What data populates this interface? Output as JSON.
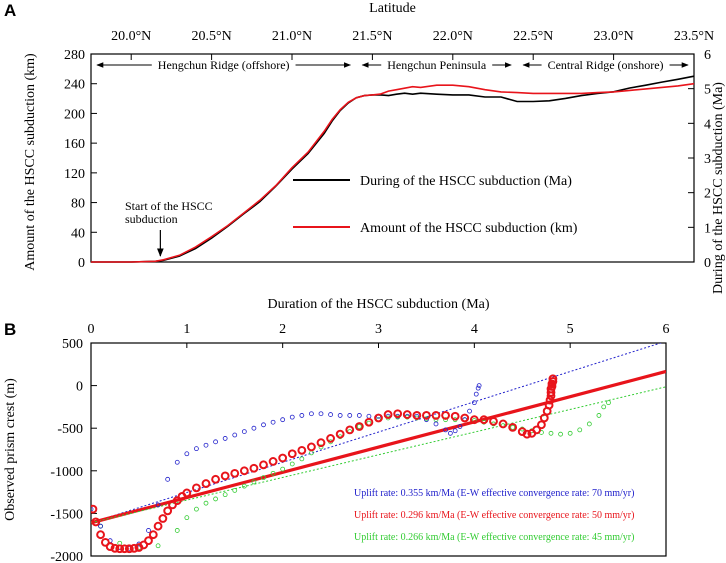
{
  "chart_data": [
    {
      "panel": "A",
      "type": "line",
      "top_axis": {
        "label": "Latitude",
        "range": [
          19.75,
          23.5
        ],
        "ticks": [
          {
            "v": 20.0,
            "label": "20.0°N"
          },
          {
            "v": 20.5,
            "label": "20.5°N"
          },
          {
            "v": 21.0,
            "label": "21.0°N"
          },
          {
            "v": 21.5,
            "label": "21.5°N"
          },
          {
            "v": 22.0,
            "label": "22.0°N"
          },
          {
            "v": 22.5,
            "label": "22.5°N"
          },
          {
            "v": 23.0,
            "label": "23.0°N"
          },
          {
            "v": 23.5,
            "label": "23.5°N"
          }
        ]
      },
      "ylabel": "Amount of the HSCC subduction (km)",
      "ylim": [
        0,
        280
      ],
      "yticks": [
        0,
        40,
        80,
        120,
        160,
        200,
        240,
        280
      ],
      "y2label": "During of the HSCC subduction (Ma)",
      "y2lim": [
        0,
        6
      ],
      "y2ticks": [
        0,
        1,
        2,
        3,
        4,
        5,
        6
      ],
      "regions": [
        {
          "label": "Hengchun Ridge (offshore)",
          "from": 19.75,
          "to": 21.4
        },
        {
          "label": "Hengchun Peninsula",
          "from": 21.4,
          "to": 22.4
        },
        {
          "label": "Central Ridge (onshore)",
          "from": 22.4,
          "to": 23.5
        }
      ],
      "annotation": {
        "lines": [
          "Start of  the HSCC",
          "subduction"
        ],
        "x": 20.2,
        "y": 0
      },
      "series": [
        {
          "name": "During of the HSCC subduction (Ma)",
          "color": "#000000",
          "axis": "right",
          "x": [
            19.75,
            20.0,
            20.15,
            20.2,
            20.3,
            20.4,
            20.5,
            20.6,
            20.7,
            20.8,
            20.9,
            21.0,
            21.1,
            21.2,
            21.25,
            21.3,
            21.35,
            21.4,
            21.45,
            21.5,
            21.55,
            21.6,
            21.65,
            21.7,
            21.75,
            21.8,
            21.9,
            22.0,
            22.1,
            22.2,
            22.3,
            22.4,
            22.5,
            22.6,
            22.7,
            22.8,
            22.9,
            23.0,
            23.1,
            23.2,
            23.3,
            23.4,
            23.5
          ],
          "y": [
            0,
            0,
            0.02,
            0.05,
            0.17,
            0.39,
            0.69,
            1.03,
            1.39,
            1.74,
            2.19,
            2.68,
            3.13,
            3.71,
            4.07,
            4.37,
            4.59,
            4.74,
            4.8,
            4.82,
            4.82,
            4.8,
            4.84,
            4.87,
            4.84,
            4.87,
            4.84,
            4.82,
            4.82,
            4.76,
            4.76,
            4.63,
            4.63,
            4.65,
            4.72,
            4.8,
            4.86,
            4.91,
            5.02,
            5.1,
            5.19,
            5.27,
            5.36
          ]
        },
        {
          "name": "Amount of the HSCC subduction (km)",
          "color": "#e8141b",
          "axis": "left",
          "x": [
            19.75,
            20.0,
            20.15,
            20.2,
            20.3,
            20.4,
            20.5,
            20.6,
            20.7,
            20.8,
            20.9,
            21.0,
            21.1,
            21.2,
            21.25,
            21.3,
            21.35,
            21.4,
            21.45,
            21.5,
            21.55,
            21.6,
            21.65,
            21.7,
            21.75,
            21.8,
            21.9,
            22.0,
            22.1,
            22.2,
            22.3,
            22.4,
            22.5,
            22.6,
            22.7,
            22.8,
            22.9,
            23.0,
            23.1,
            23.2,
            23.3,
            23.4,
            23.5
          ],
          "y": [
            0,
            0,
            1,
            3,
            9,
            20,
            34,
            49,
            66,
            83,
            103,
            127,
            148,
            176,
            192,
            205,
            215,
            221,
            224,
            225,
            226,
            230,
            232,
            234,
            236,
            235,
            238,
            238,
            236,
            232,
            229,
            228,
            227,
            227,
            227,
            227,
            228,
            229,
            231,
            233,
            235,
            237,
            240
          ]
        }
      ]
    },
    {
      "panel": "B",
      "type": "scatter",
      "xlabel": "Duration of the HSCC subduction  (Ma)",
      "xlim": [
        0,
        6
      ],
      "xticks": [
        0,
        1,
        2,
        3,
        4,
        5,
        6
      ],
      "ylabel": "Observed prism crest  (m)",
      "ylim": [
        -2000,
        500
      ],
      "yticks": [
        -2000,
        -1500,
        -1000,
        -500,
        0,
        500
      ],
      "series": [
        {
          "name": "Uplift rate: 0.355 km/Ma (E-W effective convergence rate: 70 mm/yr)",
          "color": "#2222cc",
          "marker_size": "small",
          "trend": {
            "slope": 355,
            "intercept": -1610
          },
          "x": [
            0,
            0.1,
            0.2,
            0.3,
            0.4,
            0.5,
            0.6,
            0.7,
            0.8,
            0.9,
            1.0,
            1.1,
            1.2,
            1.3,
            1.4,
            1.5,
            1.6,
            1.7,
            1.8,
            1.9,
            2.0,
            2.1,
            2.2,
            2.3,
            2.4,
            2.5,
            2.6,
            2.7,
            2.8,
            2.9,
            3.0,
            3.1,
            3.2,
            3.3,
            3.4,
            3.5,
            3.6,
            3.7,
            3.75,
            3.8,
            3.85,
            3.9,
            3.95,
            4.0,
            4.02,
            4.04,
            4.05
          ],
          "y": [
            -1450,
            -1650,
            -1820,
            -1900,
            -1910,
            -1860,
            -1700,
            -1400,
            -1100,
            -900,
            -800,
            -740,
            -700,
            -660,
            -620,
            -580,
            -540,
            -500,
            -460,
            -430,
            -400,
            -370,
            -350,
            -330,
            -330,
            -340,
            -350,
            -350,
            -350,
            -360,
            -360,
            -360,
            -360,
            -360,
            -360,
            -400,
            -450,
            -520,
            -560,
            -530,
            -480,
            -400,
            -300,
            -200,
            -100,
            -30,
            0
          ]
        },
        {
          "name": "Uplift rate: 0.296 km/Ma (E-W effective convergence rate: 50 mm/yr)",
          "color": "#e8141b",
          "marker_size": "large",
          "trend": {
            "slope": 296,
            "intercept": -1610
          },
          "x": [
            0.02,
            0.05,
            0.1,
            0.15,
            0.2,
            0.25,
            0.3,
            0.35,
            0.4,
            0.45,
            0.5,
            0.55,
            0.6,
            0.65,
            0.7,
            0.75,
            0.8,
            0.85,
            0.9,
            0.95,
            1.0,
            1.1,
            1.2,
            1.3,
            1.4,
            1.5,
            1.6,
            1.7,
            1.8,
            1.9,
            2.0,
            2.1,
            2.2,
            2.3,
            2.4,
            2.5,
            2.6,
            2.7,
            2.8,
            2.9,
            3.0,
            3.1,
            3.2,
            3.3,
            3.4,
            3.5,
            3.6,
            3.7,
            3.8,
            3.9,
            4.0,
            4.1,
            4.2,
            4.3,
            4.4,
            4.5,
            4.55,
            4.6,
            4.65,
            4.7,
            4.73,
            4.76,
            4.78,
            4.79,
            4.8,
            4.8,
            4.8,
            4.81,
            4.81,
            4.82,
            4.82
          ],
          "y": [
            -1450,
            -1600,
            -1750,
            -1840,
            -1890,
            -1910,
            -1915,
            -1915,
            -1915,
            -1910,
            -1900,
            -1870,
            -1820,
            -1750,
            -1650,
            -1560,
            -1470,
            -1400,
            -1350,
            -1300,
            -1260,
            -1200,
            -1150,
            -1100,
            -1060,
            -1030,
            -1000,
            -970,
            -930,
            -890,
            -850,
            -800,
            -760,
            -720,
            -670,
            -620,
            -570,
            -520,
            -480,
            -430,
            -380,
            -340,
            -330,
            -340,
            -350,
            -350,
            -350,
            -350,
            -360,
            -380,
            -400,
            -400,
            -420,
            -450,
            -490,
            -540,
            -570,
            -560,
            -520,
            -460,
            -380,
            -300,
            -230,
            -170,
            -120,
            -80,
            -40,
            -10,
            20,
            50,
            80
          ]
        },
        {
          "name": "Uplift rate: 0.266 km/Ma (E-W effective convergence rate: 45 mm/yr)",
          "color": "#33cc33",
          "marker_size": "small",
          "trend": {
            "slope": 266,
            "intercept": -1610
          },
          "x": [
            0.1,
            0.3,
            0.5,
            0.7,
            0.9,
            1.0,
            1.1,
            1.2,
            1.3,
            1.4,
            1.5,
            1.6,
            1.7,
            1.8,
            1.9,
            2.0,
            2.1,
            2.2,
            2.3,
            2.4,
            2.5,
            2.6,
            2.7,
            2.8,
            2.9,
            3.0,
            3.1,
            3.2,
            3.3,
            3.4,
            3.5,
            3.6,
            3.7,
            3.8,
            3.9,
            4.0,
            4.1,
            4.2,
            4.3,
            4.4,
            4.5,
            4.6,
            4.7,
            4.8,
            4.9,
            5.0,
            5.1,
            5.2,
            5.3,
            5.35,
            5.4
          ],
          "y": [
            -1650,
            -1850,
            -1900,
            -1880,
            -1700,
            -1550,
            -1450,
            -1380,
            -1330,
            -1280,
            -1230,
            -1180,
            -1130,
            -1080,
            -1030,
            -980,
            -920,
            -860,
            -790,
            -720,
            -660,
            -600,
            -540,
            -480,
            -440,
            -400,
            -380,
            -370,
            -370,
            -380,
            -390,
            -400,
            -400,
            -400,
            -400,
            -410,
            -430,
            -450,
            -470,
            -490,
            -510,
            -530,
            -550,
            -560,
            -570,
            -560,
            -520,
            -450,
            -350,
            -250,
            -200
          ]
        }
      ]
    }
  ]
}
